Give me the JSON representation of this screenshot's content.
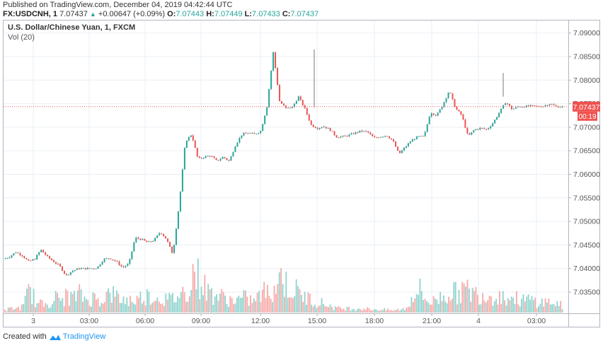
{
  "header": {
    "published": "Published on TradingView.com, December 04, 2019 04:42:44 UTC",
    "symbol": "FX:USDCNH, 1",
    "last": "7.07437",
    "change": "+0.00647 (+0.09%)",
    "ohlc": {
      "o_label": "O:",
      "o": "7.07443",
      "h_label": "H:",
      "h": "7.07449",
      "l_label": "L:",
      "l": "7.07433",
      "c_label": "C:",
      "c": "7.07437"
    }
  },
  "legend": {
    "title": "U.S. Dollar/Chinese Yuan, 1, FXCM",
    "volume": "Vol (20)"
  },
  "price_axis": {
    "ticks": [
      "7.09000",
      "7.08500",
      "7.08000",
      "7.07500",
      "7.07000",
      "7.06500",
      "7.06000",
      "7.05500",
      "7.05000",
      "7.04500",
      "7.04000",
      "7.03500"
    ],
    "last_price_label": "7.07437",
    "countdown_label": "00:19"
  },
  "time_axis": {
    "ticks": [
      "3",
      "03:00",
      "06:00",
      "09:00",
      "12:00",
      "15:00",
      "18:00",
      "21:00",
      "4",
      "03:00"
    ]
  },
  "footer": {
    "created_with": "Created with",
    "brand": "TradingView"
  },
  "colors": {
    "up": "#26a69a",
    "down": "#ef5350",
    "vol_up": "#8fd3cd",
    "vol_down": "#f7a9a8",
    "grid": "#e9eff5",
    "last_price": "#ef5350"
  },
  "chart_data": {
    "type": "line",
    "title": "U.S. Dollar/Chinese Yuan, 1, FXCM",
    "xlabel": "",
    "ylabel": "",
    "ylim": [
      7.0305,
      7.0925
    ],
    "grid": true,
    "x_tick_labels": [
      "3",
      "03:00",
      "06:00",
      "09:00",
      "12:00",
      "15:00",
      "18:00",
      "21:00",
      "4",
      "03:00"
    ],
    "price_series": {
      "name": "USDCNH close (approx, read from candles)",
      "x": [
        "00:00",
        "00:20",
        "00:40",
        "01:00",
        "01:20",
        "01:40",
        "02:00",
        "02:20",
        "02:40",
        "03:00",
        "03:20",
        "03:40",
        "04:00",
        "04:20",
        "04:40",
        "05:00",
        "05:20",
        "05:40",
        "06:00",
        "06:20",
        "06:40",
        "07:00",
        "07:20",
        "07:40",
        "08:00",
        "08:20",
        "08:40",
        "09:00",
        "09:20",
        "09:40",
        "10:00",
        "10:10",
        "10:20",
        "10:40",
        "11:00",
        "11:20",
        "11:40",
        "12:00",
        "12:20",
        "12:40",
        "13:00",
        "13:20",
        "13:40",
        "14:00",
        "14:20",
        "14:40",
        "14:50",
        "15:00",
        "15:10",
        "15:30",
        "15:50",
        "16:10",
        "16:30",
        "16:50",
        "17:10",
        "17:30",
        "17:50",
        "18:10",
        "18:30",
        "18:50",
        "19:10",
        "19:30",
        "19:50",
        "20:10",
        "20:30",
        "20:50",
        "21:10",
        "21:30",
        "21:50",
        "22:10",
        "22:30",
        "22:50",
        "23:10",
        "23:30",
        "23:50",
        "00:10",
        "00:30",
        "00:50",
        "01:10",
        "01:30",
        "01:50",
        "02:10",
        "02:30",
        "02:50",
        "03:10",
        "03:30",
        "03:50",
        "04:10",
        "04:30",
        "04:42"
      ],
      "values": [
        7.042,
        7.0425,
        7.0435,
        7.0428,
        7.0415,
        7.042,
        7.044,
        7.0425,
        7.0415,
        7.0405,
        7.0385,
        7.0395,
        7.04,
        7.04,
        7.04,
        7.0402,
        7.042,
        7.0422,
        7.0415,
        7.0402,
        7.041,
        7.0465,
        7.0462,
        7.0455,
        7.046,
        7.0478,
        7.0462,
        7.043,
        7.0535,
        7.067,
        7.0685,
        7.0632,
        7.0637,
        7.064,
        7.0628,
        7.0637,
        7.0628,
        7.0663,
        7.0685,
        7.0688,
        7.0685,
        7.0692,
        7.0745,
        7.086,
        7.0755,
        7.074,
        7.0742,
        7.0765,
        7.074,
        7.0705,
        7.0698,
        7.0702,
        7.0695,
        7.068,
        7.068,
        7.0683,
        7.0688,
        7.0692,
        7.069,
        7.0677,
        7.068,
        7.0683,
        7.0672,
        7.0643,
        7.0658,
        7.0672,
        7.068,
        7.068,
        7.0732,
        7.0725,
        7.0748,
        7.0778,
        7.074,
        7.0725,
        7.068,
        7.0695,
        7.0698,
        7.0695,
        7.071,
        7.0732,
        7.0754,
        7.0738,
        7.0744,
        7.0744,
        7.0745,
        7.0744,
        7.0745,
        7.075,
        7.0744,
        7.07437
      ]
    },
    "volume_series": {
      "name": "Vol (20)",
      "note": "relative bar heights 0-1, approx",
      "values": [
        0.05,
        0.1,
        0.1,
        0.15,
        0.62,
        0.2,
        0.2,
        0.25,
        0.35,
        0.3,
        0.4,
        0.35,
        0.45,
        0.3,
        0.35,
        0.3,
        0.4,
        0.45,
        0.35,
        0.3,
        0.3,
        0.3,
        0.4,
        0.4,
        0.35,
        0.35,
        0.3,
        0.35,
        0.45,
        0.5,
        1.0,
        0.8,
        0.55,
        0.45,
        0.4,
        0.35,
        0.3,
        0.3,
        0.35,
        0.3,
        0.3,
        0.5,
        0.45,
        0.65,
        0.9,
        0.6,
        0.55,
        0.45,
        0.35,
        0.3,
        0.25,
        0.2,
        0.15,
        0.1,
        0.1,
        0.1,
        0.1,
        0.1,
        0.08,
        0.08,
        0.07,
        0.06,
        0.05,
        0.08,
        0.1,
        0.45,
        0.55,
        0.3,
        0.25,
        0.35,
        0.4,
        0.5,
        0.45,
        0.55,
        0.5,
        0.45,
        0.45,
        0.4,
        0.4,
        0.4,
        0.35,
        0.35,
        0.3,
        0.3,
        0.3,
        0.25,
        0.25,
        0.25,
        0.2,
        0.15
      ]
    }
  }
}
